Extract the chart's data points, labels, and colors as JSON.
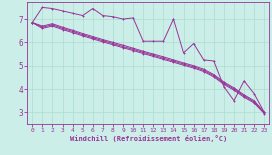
{
  "bg_color": "#cceee8",
  "line_color": "#993399",
  "grid_color": "#aaddcc",
  "xlabel": "Windchill (Refroidissement éolien,°C)",
  "xlabel_color": "#993399",
  "tick_color": "#993399",
  "ylim": [
    2.5,
    7.75
  ],
  "xlim": [
    -0.5,
    23.5
  ],
  "yticks": [
    3,
    4,
    5,
    6,
    7
  ],
  "xticks": [
    0,
    1,
    2,
    3,
    4,
    5,
    6,
    7,
    8,
    9,
    10,
    11,
    12,
    13,
    14,
    15,
    16,
    17,
    18,
    19,
    20,
    21,
    22,
    23
  ],
  "series1_x": [
    0,
    1,
    2,
    3,
    4,
    5,
    6,
    7,
    8,
    9,
    10,
    11,
    12,
    13,
    14,
    15,
    16,
    17,
    18,
    19,
    20,
    21,
    22,
    23
  ],
  "series1_y": [
    6.85,
    7.5,
    7.45,
    7.35,
    7.25,
    7.15,
    7.45,
    7.15,
    7.1,
    7.0,
    7.05,
    6.05,
    6.05,
    6.05,
    7.0,
    5.55,
    5.95,
    5.25,
    5.2,
    4.1,
    3.5,
    4.35,
    3.8,
    3.0
  ],
  "series2_x": [
    0,
    1,
    2,
    3,
    4,
    5,
    6,
    7,
    8,
    9,
    10,
    11,
    12,
    13,
    14,
    15,
    16,
    17,
    18,
    19,
    20,
    21,
    22,
    23
  ],
  "series2_y": [
    6.85,
    6.7,
    6.8,
    6.65,
    6.52,
    6.38,
    6.25,
    6.12,
    6.0,
    5.88,
    5.75,
    5.62,
    5.5,
    5.38,
    5.25,
    5.12,
    5.0,
    4.85,
    4.62,
    4.3,
    4.05,
    3.75,
    3.5,
    3.0
  ],
  "series3_x": [
    0,
    1,
    2,
    3,
    4,
    5,
    6,
    7,
    8,
    9,
    10,
    11,
    12,
    13,
    14,
    15,
    16,
    17,
    18,
    19,
    20,
    21,
    22,
    23
  ],
  "series3_y": [
    6.85,
    6.65,
    6.75,
    6.6,
    6.47,
    6.33,
    6.2,
    6.07,
    5.95,
    5.82,
    5.7,
    5.57,
    5.45,
    5.32,
    5.2,
    5.07,
    4.95,
    4.8,
    4.57,
    4.25,
    4.0,
    3.7,
    3.45,
    2.97
  ],
  "series4_x": [
    0,
    1,
    2,
    3,
    4,
    5,
    6,
    7,
    8,
    9,
    10,
    11,
    12,
    13,
    14,
    15,
    16,
    17,
    18,
    19,
    20,
    21,
    22,
    23
  ],
  "series4_y": [
    6.85,
    6.6,
    6.7,
    6.55,
    6.42,
    6.28,
    6.15,
    6.02,
    5.9,
    5.77,
    5.65,
    5.52,
    5.4,
    5.27,
    5.15,
    5.02,
    4.9,
    4.75,
    4.52,
    4.2,
    3.95,
    3.65,
    3.4,
    2.95
  ]
}
